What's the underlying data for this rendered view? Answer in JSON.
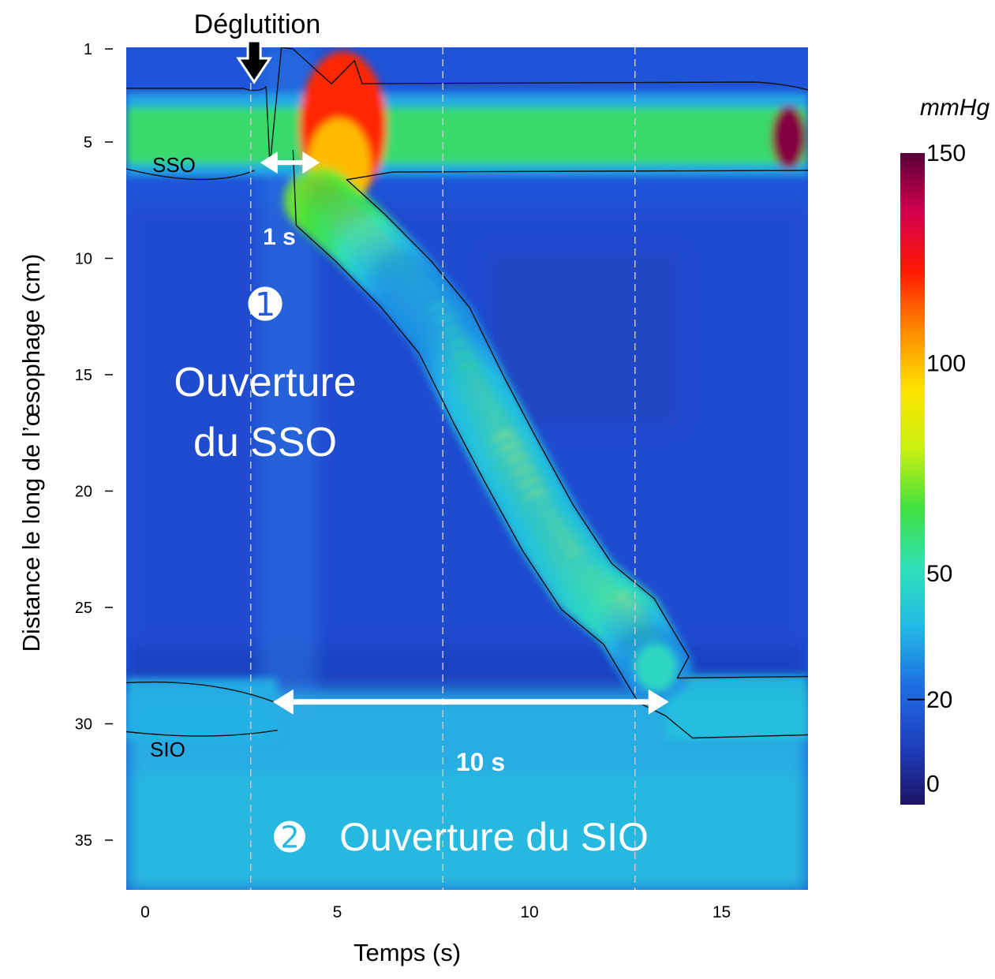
{
  "chart_data": {
    "type": "heatmap",
    "title": "Déglutition",
    "xlabel": "Temps (s)",
    "ylabel": "Distance le long de l’œsophage (cm)",
    "xlim": [
      -0.8,
      17.2
    ],
    "ylim": [
      1,
      36.5
    ],
    "x_ticks": [
      0,
      5,
      10,
      15
    ],
    "y_ticks": [
      1,
      5,
      10,
      15,
      20,
      25,
      30,
      35
    ],
    "vertical_reference_lines_s": [
      2.5,
      7.5,
      12.5
    ],
    "colorbar": {
      "label": "mmHg",
      "ticks": [
        0,
        20,
        50,
        100,
        150
      ],
      "range": [
        -5,
        150
      ],
      "colors": [
        "#1e1466",
        "#1f3fbf",
        "#1e6fe0",
        "#22b8e6",
        "#30e0b8",
        "#40e040",
        "#c8f010",
        "#ffe400",
        "#ff8a00",
        "#ff1a00",
        "#d4004e",
        "#5a0038"
      ],
      "contour_level": 20
    },
    "regions": [
      {
        "name": "SSO",
        "label": "SSO",
        "position_cm": 5
      },
      {
        "name": "SIO",
        "label": "SIO",
        "position_cm": 30
      }
    ],
    "annotations": {
      "swallow_time_s": 3.0,
      "interval_1": {
        "label": "1 s",
        "from_s": 2.5,
        "to_s": 4.3,
        "depth_cm": 6.7
      },
      "interval_2": {
        "label": "10 s",
        "from_s": 3.2,
        "to_s": 13.3,
        "depth_cm": 29.4
      },
      "step_1": {
        "number": "➊",
        "text_line1": "Ouverture",
        "text_line2": "du SSO"
      },
      "step_2": {
        "number": "➋",
        "text": "Ouverture du SIO"
      }
    },
    "peristaltic_front": {
      "time_s": [
        4.3,
        5.3,
        6.5,
        7.5,
        8.4,
        9.2,
        10.2,
        11.2,
        12.3,
        13.2
      ],
      "depth_cm": [
        7.5,
        9.0,
        11.0,
        13.0,
        16.0,
        18.5,
        21.5,
        24.0,
        25.5,
        28.0
      ],
      "peak_mmHg": [
        130,
        110,
        60,
        45,
        70,
        75,
        72,
        78,
        90,
        40
      ]
    }
  }
}
